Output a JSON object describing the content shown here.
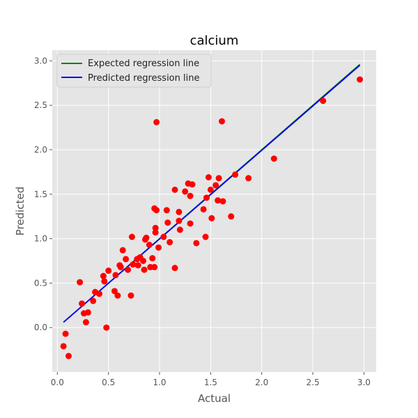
{
  "chart_data": {
    "type": "scatter",
    "title": "calcium",
    "xlabel": "Actual",
    "ylabel": "Predicted",
    "xlim": [
      -0.05,
      3.12
    ],
    "ylim": [
      -0.5,
      3.12
    ],
    "xticks": [
      0.0,
      0.5,
      1.0,
      1.5,
      2.0,
      2.5,
      3.0
    ],
    "xtick_labels": [
      "0.0",
      "0.5",
      "1.0",
      "1.5",
      "2.0",
      "2.5",
      "3.0"
    ],
    "yticks": [
      0.0,
      0.5,
      1.0,
      1.5,
      2.0,
      2.5,
      3.0
    ],
    "ytick_labels": [
      "0.0",
      "0.5",
      "1.0",
      "1.5",
      "2.0",
      "2.5",
      "3.0"
    ],
    "grid": true,
    "legend_position": "top-left",
    "colors": {
      "background": "#e5e5e5",
      "grid": "#ffffff",
      "points": "#ff0000",
      "expected_line": "#008000",
      "predicted_line": "#0000ff"
    },
    "lines": [
      {
        "name": "Expected regression line",
        "x": [
          0.06,
          2.96
        ],
        "y": [
          0.06,
          2.96
        ]
      },
      {
        "name": "Predicted regression line",
        "x": [
          0.06,
          2.96
        ],
        "y": [
          0.06,
          2.95
        ]
      }
    ],
    "points": {
      "x": [
        0.06,
        0.08,
        0.11,
        0.22,
        0.24,
        0.26,
        0.28,
        0.3,
        0.35,
        0.37,
        0.41,
        0.45,
        0.46,
        0.48,
        0.5,
        0.56,
        0.57,
        0.59,
        0.61,
        0.62,
        0.64,
        0.67,
        0.69,
        0.72,
        0.73,
        0.74,
        0.78,
        0.79,
        0.81,
        0.84,
        0.85,
        0.86,
        0.87,
        0.9,
        0.91,
        0.93,
        0.95,
        0.95,
        0.96,
        0.96,
        0.97,
        0.97,
        0.99,
        1.04,
        1.07,
        1.08,
        1.1,
        1.15,
        1.15,
        1.19,
        1.19,
        1.2,
        1.25,
        1.28,
        1.3,
        1.3,
        1.32,
        1.36,
        1.43,
        1.45,
        1.46,
        1.48,
        1.5,
        1.51,
        1.55,
        1.57,
        1.58,
        1.61,
        1.62,
        1.7,
        1.74,
        1.87,
        2.12,
        2.6,
        2.96
      ],
      "y": [
        -0.21,
        -0.07,
        -0.32,
        0.51,
        0.27,
        0.16,
        0.06,
        0.17,
        0.3,
        0.4,
        0.38,
        0.58,
        0.52,
        0.0,
        0.64,
        0.41,
        0.59,
        0.36,
        0.7,
        0.68,
        0.87,
        0.77,
        0.65,
        0.36,
        1.02,
        0.71,
        0.77,
        0.7,
        0.79,
        0.75,
        0.65,
        0.99,
        1.01,
        0.93,
        0.68,
        0.78,
        0.68,
        1.34,
        1.07,
        1.12,
        1.32,
        2.31,
        0.9,
        1.02,
        1.32,
        1.18,
        0.96,
        1.55,
        0.67,
        1.2,
        1.3,
        1.1,
        1.53,
        1.62,
        1.17,
        1.48,
        1.61,
        0.95,
        1.33,
        1.02,
        1.46,
        1.69,
        1.55,
        1.23,
        1.6,
        1.43,
        1.68,
        2.32,
        1.42,
        1.25,
        1.72,
        1.68,
        1.9,
        2.55,
        2.79
      ]
    }
  }
}
